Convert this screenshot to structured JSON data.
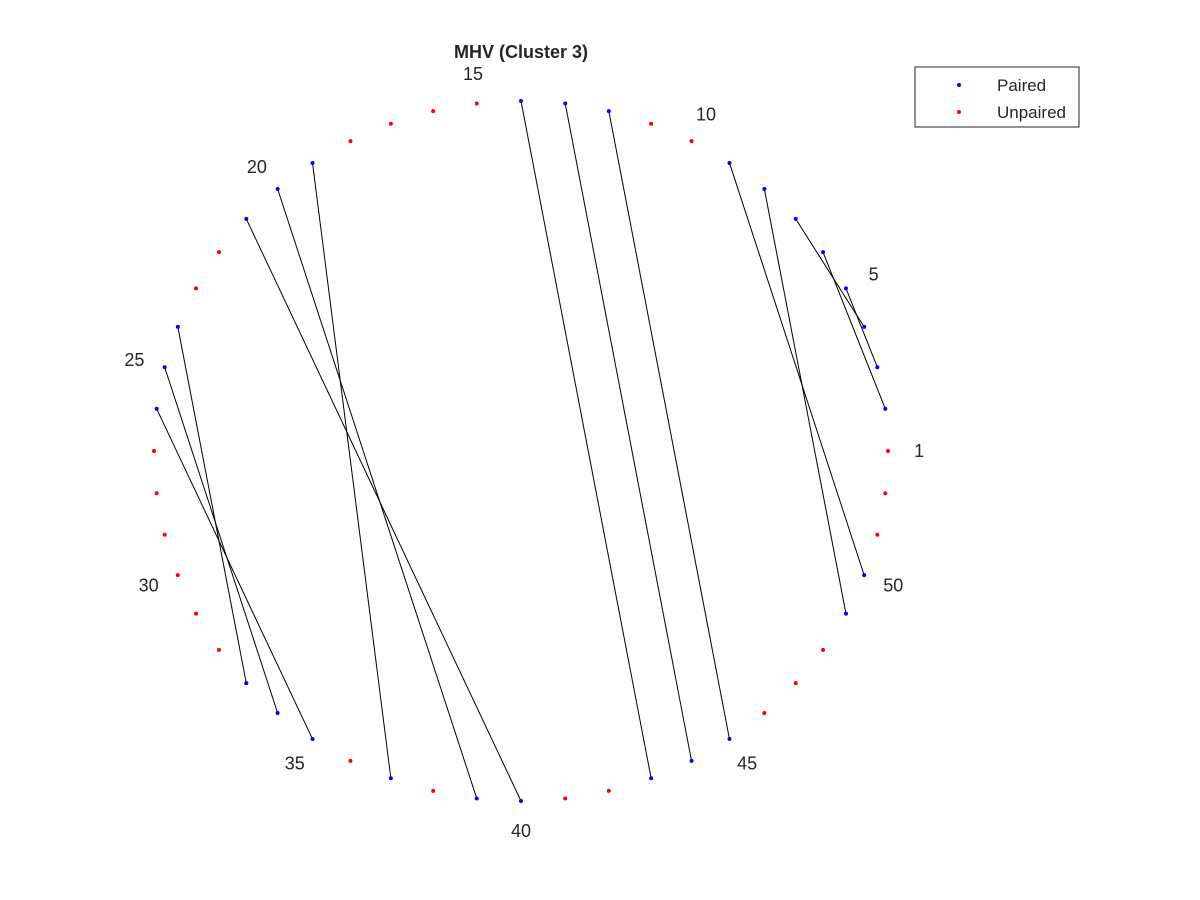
{
  "figure": {
    "title": "MHV (Cluster 3)"
  },
  "chart_data": {
    "type": "circular-arc-diagram",
    "title": "MHV (Cluster 3)",
    "n_positions": 52,
    "position_labels": [
      "1",
      "5",
      "10",
      "15",
      "20",
      "25",
      "30",
      "35",
      "40",
      "45",
      "50"
    ],
    "labeled_positions": [
      1,
      5,
      10,
      15,
      20,
      25,
      30,
      35,
      40,
      45,
      50
    ],
    "pairs": [
      [
        2,
        6
      ],
      [
        3,
        5
      ],
      [
        4,
        7
      ],
      [
        8,
        49
      ],
      [
        9,
        50
      ],
      [
        12,
        45
      ],
      [
        13,
        44
      ],
      [
        14,
        43
      ],
      [
        19,
        37
      ],
      [
        20,
        39
      ],
      [
        21,
        40
      ],
      [
        24,
        33
      ],
      [
        25,
        34
      ],
      [
        26,
        35
      ]
    ],
    "series": [
      {
        "name": "Paired",
        "color": "#0000ff"
      },
      {
        "name": "Unpaired",
        "color": "#ff0000"
      }
    ],
    "line_color": "#000000",
    "legend_position": "top-right"
  },
  "legend": {
    "items": [
      {
        "label": "Paired",
        "color": "#0000ff"
      },
      {
        "label": "Unpaired",
        "color": "#ff0000"
      }
    ]
  }
}
